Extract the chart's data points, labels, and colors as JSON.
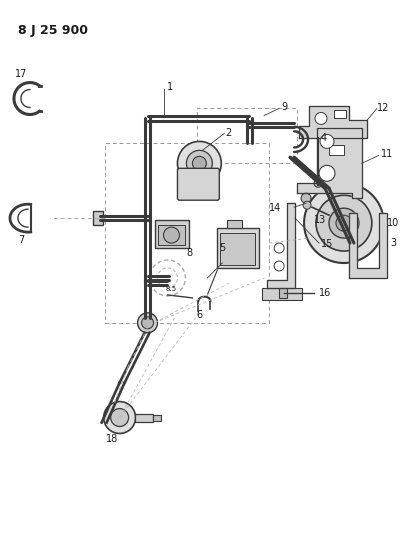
{
  "title": "8 J 25 900",
  "bg_color": "#ffffff",
  "line_color": "#3a3a3a",
  "label_color": "#1a1a1a",
  "fig_w": 4.01,
  "fig_h": 5.33,
  "dpi": 100
}
